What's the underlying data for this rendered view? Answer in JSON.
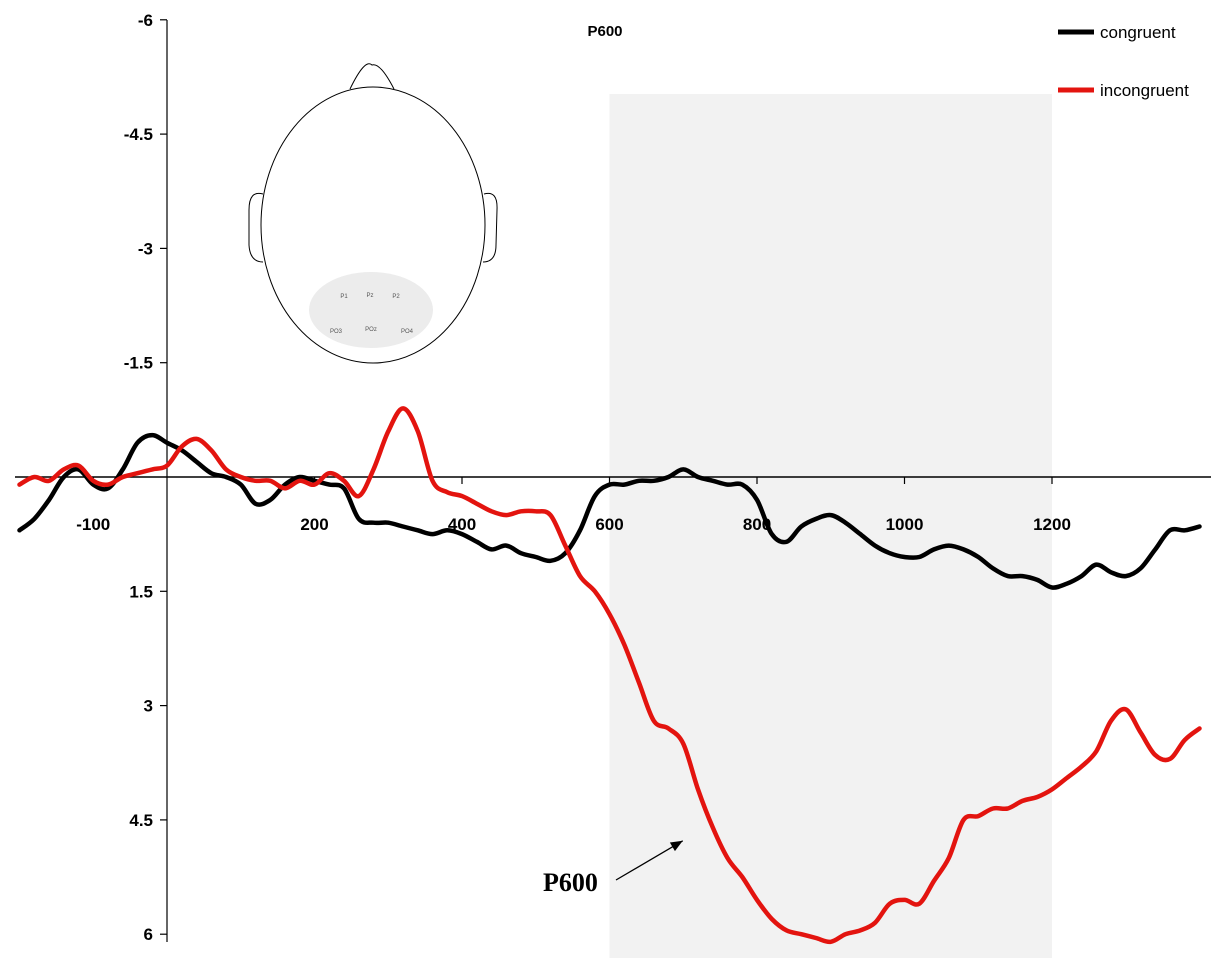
{
  "chart_data": {
    "type": "line",
    "title": "P600",
    "xlabel": "",
    "ylabel": "",
    "xlim": [
      -200,
      1400
    ],
    "ylim": [
      -6,
      6
    ],
    "y_inverted": true,
    "x_ticks": [
      -100,
      200,
      400,
      600,
      800,
      1000,
      1200
    ],
    "y_ticks": [
      -6,
      -4.5,
      -3,
      -1.5,
      1.5,
      3,
      4.5,
      6
    ],
    "shaded_window": [
      600,
      1200
    ],
    "legend_position": "top-right",
    "colors": {
      "congruent": "#000000",
      "incongruent": "#e3140f",
      "shade": "#f2f2f2"
    },
    "series": [
      {
        "name": "congruent",
        "x": [
          -200,
          -180,
          -160,
          -140,
          -120,
          -100,
          -80,
          -60,
          -40,
          -20,
          0,
          20,
          40,
          60,
          80,
          100,
          120,
          140,
          160,
          180,
          200,
          220,
          240,
          260,
          280,
          300,
          320,
          340,
          360,
          380,
          400,
          420,
          440,
          460,
          480,
          500,
          520,
          540,
          560,
          580,
          600,
          620,
          640,
          660,
          680,
          700,
          720,
          740,
          760,
          780,
          800,
          820,
          840,
          860,
          880,
          900,
          920,
          940,
          960,
          980,
          1000,
          1020,
          1040,
          1060,
          1080,
          1100,
          1120,
          1140,
          1160,
          1180,
          1200,
          1220,
          1240,
          1260,
          1280,
          1300,
          1320,
          1340,
          1360,
          1380,
          1400
        ],
        "values": [
          0.7,
          0.55,
          0.3,
          0.0,
          -0.1,
          0.1,
          0.15,
          -0.1,
          -0.45,
          -0.55,
          -0.45,
          -0.35,
          -0.2,
          -0.05,
          0.0,
          0.1,
          0.35,
          0.3,
          0.1,
          0.0,
          0.05,
          0.1,
          0.15,
          0.55,
          0.6,
          0.6,
          0.65,
          0.7,
          0.75,
          0.7,
          0.75,
          0.85,
          0.95,
          0.9,
          1.0,
          1.05,
          1.1,
          1.0,
          0.7,
          0.25,
          0.1,
          0.1,
          0.05,
          0.05,
          0.0,
          -0.1,
          0.0,
          0.05,
          0.1,
          0.1,
          0.3,
          0.75,
          0.85,
          0.65,
          0.55,
          0.5,
          0.6,
          0.75,
          0.9,
          1.0,
          1.05,
          1.05,
          0.95,
          0.9,
          0.95,
          1.05,
          1.2,
          1.3,
          1.3,
          1.35,
          1.45,
          1.4,
          1.3,
          1.15,
          1.25,
          1.3,
          1.2,
          0.95,
          0.7,
          0.7,
          0.65
        ]
      },
      {
        "name": "incongruent",
        "x": [
          -200,
          -180,
          -160,
          -140,
          -120,
          -100,
          -80,
          -60,
          -40,
          -20,
          0,
          20,
          40,
          60,
          80,
          100,
          120,
          140,
          160,
          180,
          200,
          220,
          240,
          260,
          280,
          300,
          320,
          340,
          360,
          380,
          400,
          420,
          440,
          460,
          480,
          500,
          520,
          540,
          560,
          580,
          600,
          620,
          640,
          660,
          680,
          700,
          720,
          740,
          760,
          780,
          800,
          820,
          840,
          860,
          880,
          900,
          920,
          940,
          960,
          980,
          1000,
          1020,
          1040,
          1060,
          1080,
          1100,
          1120,
          1140,
          1160,
          1180,
          1200,
          1220,
          1240,
          1260,
          1280,
          1300,
          1320,
          1340,
          1360,
          1380,
          1400
        ],
        "values": [
          0.1,
          0.0,
          0.05,
          -0.1,
          -0.15,
          0.05,
          0.1,
          0.0,
          -0.05,
          -0.1,
          -0.15,
          -0.4,
          -0.5,
          -0.35,
          -0.1,
          0.0,
          0.05,
          0.05,
          0.15,
          0.05,
          0.1,
          -0.05,
          0.05,
          0.25,
          -0.1,
          -0.6,
          -0.9,
          -0.6,
          0.05,
          0.2,
          0.25,
          0.35,
          0.45,
          0.5,
          0.45,
          0.45,
          0.5,
          0.9,
          1.3,
          1.5,
          1.8,
          2.2,
          2.7,
          3.2,
          3.3,
          3.5,
          4.1,
          4.6,
          5.0,
          5.25,
          5.55,
          5.8,
          5.95,
          6.0,
          6.05,
          6.1,
          6.0,
          5.95,
          5.85,
          5.6,
          5.55,
          5.6,
          5.3,
          5.0,
          4.5,
          4.45,
          4.35,
          4.35,
          4.25,
          4.2,
          4.1,
          3.95,
          3.8,
          3.6,
          3.2,
          3.05,
          3.35,
          3.65,
          3.7,
          3.45,
          3.3
        ]
      }
    ],
    "annotations": [
      {
        "text": "P600",
        "target_x": 740,
        "target_y": 4.8
      }
    ],
    "inset": {
      "description_labels": [
        "P1",
        "Pz",
        "P2",
        "PO3",
        "POz",
        "PO4"
      ]
    }
  }
}
